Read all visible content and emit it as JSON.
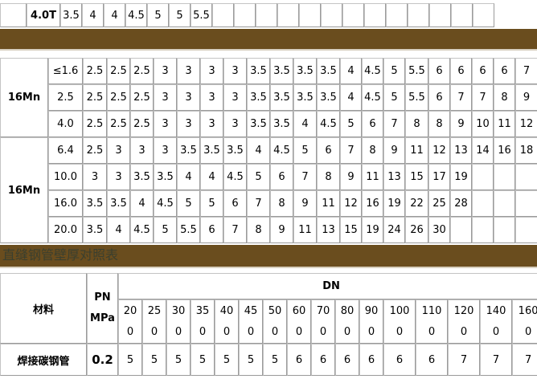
{
  "table_top": {
    "row_label": "4.0T",
    "values": [
      "3.5",
      "4",
      "4",
      "4.5",
      "5",
      "5",
      "5.5",
      "",
      "",
      "",
      "",
      "",
      "",
      "",
      "",
      "",
      "",
      "",
      "",
      ""
    ]
  },
  "table_16mn": {
    "groups": [
      {
        "material": "16Mn",
        "rows": [
          {
            "pn": "≤1.6",
            "values": [
              "2.5",
              "2.5",
              "2.5",
              "3",
              "3",
              "3",
              "3",
              "3.5",
              "3.5",
              "3.5",
              "3.5",
              "4",
              "4.5",
              "5",
              "5.5",
              "6",
              "6",
              "6",
              "6",
              "7"
            ]
          },
          {
            "pn": "2.5",
            "values": [
              "2.5",
              "2.5",
              "2.5",
              "3",
              "3",
              "3",
              "3",
              "3.5",
              "3.5",
              "3.5",
              "3.5",
              "4",
              "4.5",
              "5",
              "5.5",
              "6",
              "7",
              "7",
              "8",
              "9"
            ]
          },
          {
            "pn": "4.0",
            "values": [
              "2.5",
              "2.5",
              "2.5",
              "3",
              "3",
              "3",
              "3",
              "3.5",
              "3.5",
              "4",
              "4.5",
              "5",
              "6",
              "7",
              "8",
              "8",
              "9",
              "10",
              "11",
              "12"
            ]
          }
        ]
      },
      {
        "material": "16Mn",
        "rows": [
          {
            "pn": "6.4",
            "values": [
              "2.5",
              "3",
              "3",
              "3",
              "3.5",
              "3.5",
              "3.5",
              "4",
              "4.5",
              "5",
              "6",
              "7",
              "8",
              "9",
              "11",
              "12",
              "13",
              "14",
              "16",
              "18"
            ]
          },
          {
            "pn": "10.0",
            "values": [
              "3",
              "3",
              "3.5",
              "3.5",
              "4",
              "4",
              "4.5",
              "5",
              "6",
              "7",
              "8",
              "9",
              "11",
              "13",
              "15",
              "17",
              "19",
              "",
              "",
              ""
            ]
          },
          {
            "pn": "16.0",
            "values": [
              "3.5",
              "3.5",
              "4",
              "4.5",
              "5",
              "5",
              "6",
              "7",
              "8",
              "9",
              "11",
              "12",
              "16",
              "19",
              "22",
              "25",
              "28",
              "",
              "",
              ""
            ]
          },
          {
            "pn": "20.0",
            "values": [
              "3.5",
              "4",
              "4.5",
              "5",
              "5.5",
              "6",
              "7",
              "8",
              "9",
              "11",
              "13",
              "15",
              "19",
              "24",
              "26",
              "30",
              "",
              "",
              "",
              ""
            ]
          }
        ]
      }
    ]
  },
  "section_title": "直缝钢管壁厚对照表",
  "table_straight": {
    "material_header": "材料",
    "pn_header": "PN",
    "pn_unit": "MPa",
    "dn_header": "DN",
    "dn_values": [
      [
        "20",
        "0"
      ],
      [
        "25",
        "0"
      ],
      [
        "30",
        "0"
      ],
      [
        "35",
        "0"
      ],
      [
        "40",
        "0"
      ],
      [
        "45",
        "0"
      ],
      [
        "50",
        "0"
      ],
      [
        "60",
        "0"
      ],
      [
        "70",
        "0"
      ],
      [
        "80",
        "0"
      ],
      [
        "90",
        "0"
      ],
      [
        "100",
        "0"
      ],
      [
        "110",
        "0"
      ],
      [
        "120",
        "0"
      ],
      [
        "140",
        "0"
      ],
      [
        "160",
        "0"
      ]
    ],
    "rows": [
      {
        "material": "焊接碳钢管",
        "pn": "0.2",
        "values": [
          "5",
          "5",
          "5",
          "5",
          "5",
          "5",
          "5",
          "6",
          "6",
          "6",
          "6",
          "6",
          "6",
          "7",
          "7",
          "7"
        ]
      }
    ]
  },
  "colors": {
    "band": "#6a4d1e",
    "border": "#c4c4c4"
  }
}
